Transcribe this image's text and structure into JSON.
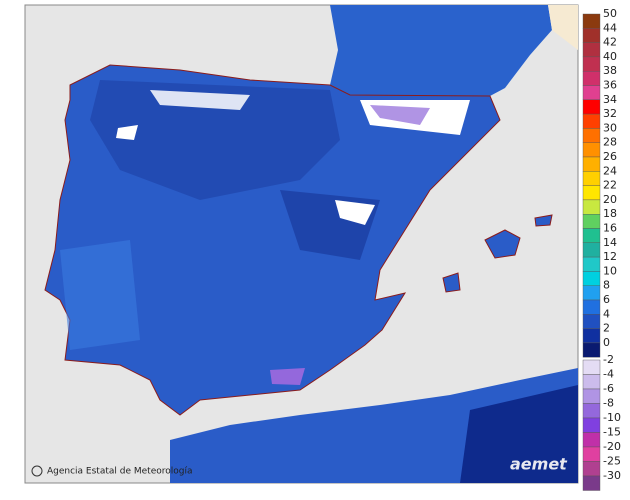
{
  "map": {
    "credit": "Agencia Estatal de Meteorología",
    "logo": "aemet",
    "legend_positive": {
      "values": [
        50,
        44,
        42,
        40,
        38,
        36,
        34,
        32,
        30,
        28,
        26,
        24,
        22,
        20,
        18,
        16,
        14,
        12,
        10,
        8,
        6,
        4,
        2,
        0
      ],
      "colors": [
        "#8b3a0f",
        "#a0302a",
        "#b03040",
        "#c03050",
        "#d0306a",
        "#e04090",
        "#ff0000",
        "#ff4000",
        "#ff7000",
        "#ff9000",
        "#ffb000",
        "#ffd000",
        "#ffe600",
        "#c8e840",
        "#60d060",
        "#20c090",
        "#20b0a0",
        "#20c8c8",
        "#00d0e0",
        "#20a0f0",
        "#2070e0",
        "#2050c0",
        "#1030a0",
        "#0a1a70"
      ]
    },
    "legend_negative": {
      "values": [
        -2,
        -4,
        -6,
        -8,
        -10,
        -15,
        -20,
        -25,
        -30
      ],
      "colors": [
        "#e4dcf4",
        "#ccbcec",
        "#b094e4",
        "#9468dc",
        "#8040e0",
        "#c030a8",
        "#e040a0",
        "#b04090",
        "#7a3a8a"
      ]
    }
  }
}
